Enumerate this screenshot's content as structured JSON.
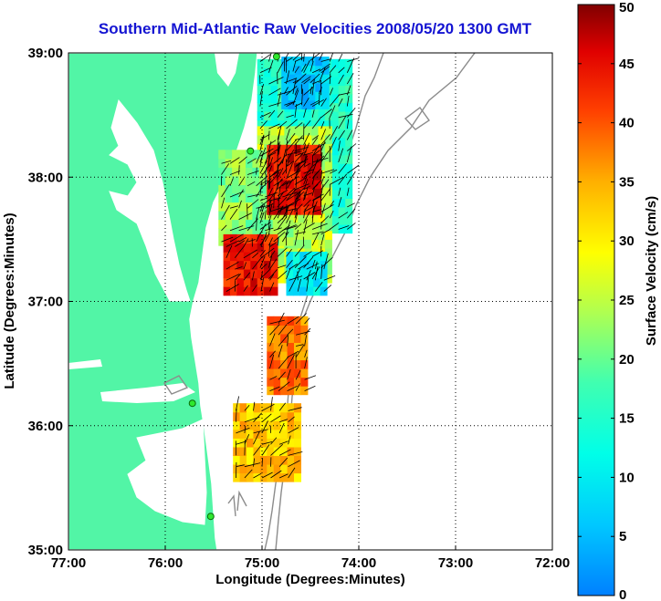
{
  "chart_data": {
    "type": "heatmap",
    "title": "Southern Mid-Atlantic Raw Velocities 2008/05/20 1300 GMT",
    "xlabel": "Longitude (Degrees:Minutes)",
    "ylabel": "Latitude (Degrees:Minutes)",
    "colorbar_label": "Surface Velocity (cm/s)",
    "xlim": [
      -77,
      -72
    ],
    "ylim": [
      35,
      39
    ],
    "x_ticks": [
      {
        "value": -77,
        "label": "77:00"
      },
      {
        "value": -76,
        "label": "76:00"
      },
      {
        "value": -75,
        "label": "75:00"
      },
      {
        "value": -74,
        "label": "74:00"
      },
      {
        "value": -73,
        "label": "73:00"
      },
      {
        "value": -72,
        "label": "72:00"
      }
    ],
    "y_ticks": [
      {
        "value": 35,
        "label": "35:00"
      },
      {
        "value": 36,
        "label": "36:00"
      },
      {
        "value": 37,
        "label": "37:00"
      },
      {
        "value": 38,
        "label": "38:00"
      },
      {
        "value": 39,
        "label": "39:00"
      }
    ],
    "colorbar_range": [
      0,
      50
    ],
    "colorbar_ticks": [
      "0",
      "5",
      "10",
      "15",
      "20",
      "25",
      "30",
      "35",
      "40",
      "45",
      "50"
    ],
    "grid": "dotted",
    "land_color": "#52f5a6",
    "regions": [
      {
        "lon": [
          -75.05,
          -74.1
        ],
        "lat": [
          37.55,
          38.95
        ],
        "speed": 15
      },
      {
        "lon": [
          -75.05,
          -74.35
        ],
        "lat": [
          37.15,
          38.35
        ],
        "speed": 25
      },
      {
        "lon": [
          -75.45,
          -74.7
        ],
        "lat": [
          37.45,
          38.2
        ],
        "speed": 22
      },
      {
        "lon": [
          -74.95,
          -74.45
        ],
        "lat": [
          37.7,
          38.25
        ],
        "speed": 45
      },
      {
        "lon": [
          -75.4,
          -74.85
        ],
        "lat": [
          37.05,
          37.5
        ],
        "speed": 44
      },
      {
        "lon": [
          -74.8,
          -74.35
        ],
        "lat": [
          38.55,
          38.95
        ],
        "speed": 6
      },
      {
        "lon": [
          -74.75,
          -74.35
        ],
        "lat": [
          37.05,
          37.35
        ],
        "speed": 10
      },
      {
        "lon": [
          -74.95,
          -74.55
        ],
        "lat": [
          36.25,
          36.85
        ],
        "speed": 38
      },
      {
        "lon": [
          -75.3,
          -74.65
        ],
        "lat": [
          35.55,
          36.15
        ],
        "speed": 33
      }
    ],
    "stations": [
      {
        "lon": -74.85,
        "lat": 38.97
      },
      {
        "lon": -75.12,
        "lat": 38.21
      },
      {
        "lon": -75.72,
        "lat": 36.18
      },
      {
        "lon": -75.53,
        "lat": 35.27
      }
    ]
  }
}
